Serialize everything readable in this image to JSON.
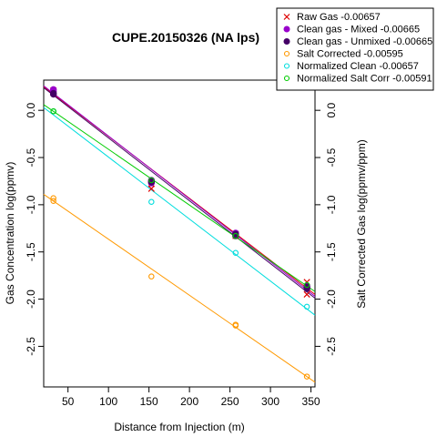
{
  "chart_data": {
    "type": "scatter",
    "title": "CUPE.20150326 (NA lps)",
    "xlabel": "Distance from Injection (m)",
    "ylabel": "Gas Concentration log(ppmv)",
    "ylabel_right": "Salt Corrected Gas log(ppmv/ppm)",
    "xlim": [
      20,
      355
    ],
    "ylim": [
      -2.93,
      0.32
    ],
    "x_ticks": [
      50,
      100,
      150,
      200,
      250,
      300,
      350
    ],
    "x_tick_labels": [
      "50",
      "100",
      "150",
      "200",
      "250",
      "300",
      "350"
    ],
    "y_ticks": [
      0.0,
      -0.5,
      -1.0,
      -1.5,
      -2.0,
      -2.5
    ],
    "y_tick_labels": [
      "0.0",
      "-0.5",
      "-1.0",
      "-1.5",
      "-2.0",
      "-2.5"
    ],
    "grid": false,
    "legend_position": "top-right",
    "series": [
      {
        "name": "Raw Gas -0.00657",
        "color": "#dd0000",
        "marker": "x",
        "x": [
          32,
          32,
          153,
          153,
          257,
          257,
          345,
          345
        ],
        "y": [
          0.21,
          0.19,
          -0.78,
          -0.83,
          -1.31,
          -1.33,
          -1.82,
          -1.95
        ],
        "line": [
          [
            20,
            0.25
          ],
          [
            355,
            -1.95
          ]
        ]
      },
      {
        "name": "Clean gas - Mixed -0.00665",
        "color": "#9900cc",
        "marker": "filled-circle",
        "x": [
          32,
          32,
          153,
          153,
          257,
          257,
          345,
          345
        ],
        "y": [
          0.22,
          0.2,
          -0.74,
          -0.77,
          -1.3,
          -1.32,
          -1.86,
          -1.88
        ],
        "line": [
          [
            20,
            0.26
          ],
          [
            355,
            -1.97
          ]
        ]
      },
      {
        "name": "Clean gas - Unmixed -0.00665",
        "color": "#440066",
        "marker": "filled-circle",
        "x": [
          32,
          32,
          153,
          153,
          257,
          257,
          345,
          345
        ],
        "y": [
          0.18,
          0.17,
          -0.75,
          -0.76,
          -1.31,
          -1.33,
          -1.87,
          -1.89
        ],
        "line": [
          [
            20,
            0.24
          ],
          [
            355,
            -1.99
          ]
        ]
      },
      {
        "name": "Salt Corrected -0.00595",
        "color": "#ff9900",
        "marker": "open-circle",
        "x": [
          32,
          32,
          153,
          257,
          257,
          345
        ],
        "y": [
          -0.93,
          -0.96,
          -1.76,
          -2.27,
          -2.28,
          -2.82
        ],
        "line": [
          [
            20,
            -0.89
          ],
          [
            355,
            -2.88
          ]
        ]
      },
      {
        "name": "Normalized Clean -0.00657",
        "color": "#00dddd",
        "marker": "open-circle",
        "x": [
          32,
          153,
          257,
          345
        ],
        "y": [
          -0.01,
          -0.97,
          -1.51,
          -2.08
        ],
        "line": [
          [
            20,
            0.03
          ],
          [
            355,
            -2.17
          ]
        ]
      },
      {
        "name": "Normalized Salt Corr -0.00591",
        "color": "#00cc00",
        "marker": "open-circle",
        "x": [
          32,
          153,
          257,
          345
        ],
        "y": [
          -0.01,
          -0.74,
          -1.33,
          -1.85
        ],
        "line": [
          [
            20,
            0.06
          ],
          [
            355,
            -1.92
          ]
        ]
      }
    ]
  }
}
